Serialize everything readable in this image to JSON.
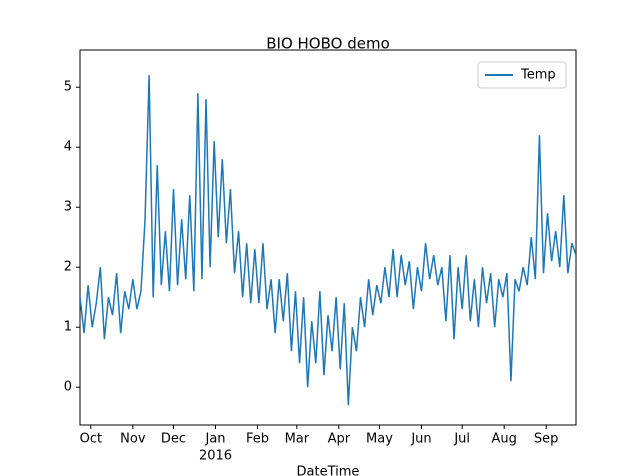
{
  "chart_data": {
    "type": "line",
    "title": "BIO HOBO demo",
    "x_label": "DateTime",
    "year_label": "2016",
    "legend_loc": "upper right",
    "grid": false,
    "xlim": [
      -8,
      358
    ],
    "xticks": [
      {
        "value": 0,
        "label": "Oct"
      },
      {
        "value": 31,
        "label": "Nov"
      },
      {
        "value": 61,
        "label": "Dec"
      },
      {
        "value": 92,
        "label": "Jan"
      },
      {
        "value": 123,
        "label": "Feb"
      },
      {
        "value": 152,
        "label": "Mar"
      },
      {
        "value": 183,
        "label": "Apr"
      },
      {
        "value": 213,
        "label": "May"
      },
      {
        "value": 244,
        "label": "Jun"
      },
      {
        "value": 274,
        "label": "Jul"
      },
      {
        "value": 305,
        "label": "Aug"
      },
      {
        "value": 336,
        "label": "Sep"
      }
    ],
    "ylim": [
      -0.63,
      5.62
    ],
    "yticks": [
      0,
      1,
      2,
      3,
      4,
      5
    ],
    "x": [
      -8,
      -5,
      -2,
      1,
      4,
      7,
      10,
      13,
      16,
      19,
      22,
      25,
      28,
      31,
      34,
      37,
      40,
      43,
      46,
      49,
      52,
      55,
      58,
      61,
      64,
      67,
      70,
      73,
      76,
      79,
      82,
      85,
      88,
      91,
      94,
      97,
      100,
      103,
      106,
      109,
      112,
      115,
      118,
      121,
      124,
      127,
      130,
      133,
      136,
      139,
      142,
      145,
      148,
      151,
      154,
      157,
      160,
      163,
      166,
      169,
      172,
      175,
      178,
      181,
      184,
      187,
      190,
      193,
      196,
      199,
      202,
      205,
      208,
      211,
      214,
      217,
      220,
      223,
      226,
      229,
      232,
      235,
      238,
      241,
      244,
      247,
      250,
      253,
      256,
      259,
      262,
      265,
      268,
      271,
      274,
      277,
      280,
      283,
      286,
      289,
      292,
      295,
      298,
      301,
      304,
      307,
      310,
      313,
      316,
      319,
      322,
      325,
      328,
      331,
      334,
      337,
      340,
      343,
      346,
      349,
      352,
      355,
      358
    ],
    "series": [
      {
        "name": "Temp",
        "color": "#1f77b4",
        "values": [
          1.5,
          0.9,
          1.7,
          1.0,
          1.4,
          2.0,
          0.8,
          1.5,
          1.2,
          1.9,
          0.9,
          1.6,
          1.3,
          1.8,
          1.3,
          1.6,
          2.8,
          5.2,
          1.5,
          3.7,
          1.7,
          2.6,
          1.6,
          3.3,
          1.7,
          2.8,
          1.8,
          3.2,
          1.6,
          4.9,
          1.8,
          4.8,
          2.0,
          4.1,
          2.5,
          3.8,
          2.4,
          3.3,
          1.9,
          2.6,
          1.5,
          2.4,
          1.4,
          2.3,
          1.4,
          2.4,
          1.3,
          1.8,
          0.9,
          1.8,
          1.1,
          1.9,
          0.6,
          1.6,
          0.4,
          1.5,
          0.0,
          1.1,
          0.4,
          1.6,
          0.2,
          1.2,
          0.6,
          1.5,
          0.3,
          1.4,
          -0.3,
          1.0,
          0.6,
          1.5,
          1.0,
          1.8,
          1.2,
          1.7,
          1.4,
          2.0,
          1.5,
          2.3,
          1.5,
          2.2,
          1.7,
          2.1,
          1.3,
          2.0,
          1.6,
          2.4,
          1.8,
          2.2,
          1.7,
          2.0,
          1.1,
          2.2,
          0.8,
          2.0,
          1.3,
          2.2,
          1.1,
          1.8,
          1.0,
          2.0,
          1.4,
          1.9,
          1.0,
          1.8,
          1.5,
          1.9,
          0.1,
          1.8,
          1.6,
          2.0,
          1.7,
          2.5,
          1.8,
          4.2,
          1.9,
          2.9,
          2.1,
          2.6,
          2.0,
          3.2,
          1.9,
          2.4,
          2.2
        ]
      }
    ]
  }
}
